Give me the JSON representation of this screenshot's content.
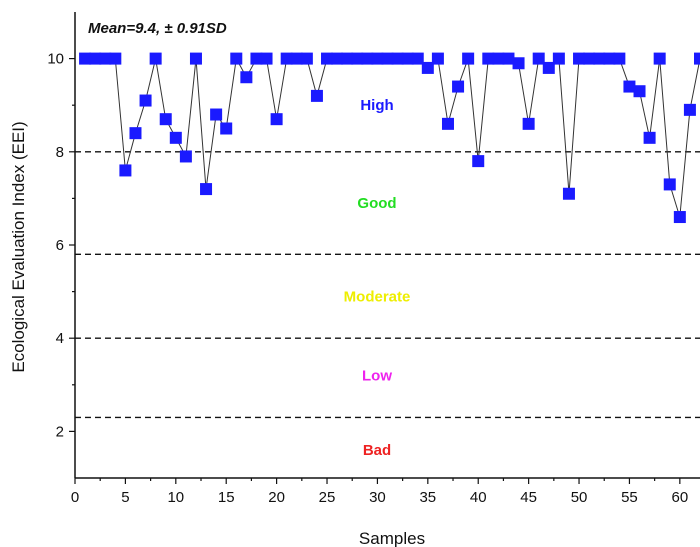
{
  "chart_data": {
    "type": "scatter",
    "annotation": "Mean=9.4, ± 0.91SD",
    "xlabel": "Samples",
    "ylabel": "Ecological Evaluation Index (EEI)",
    "xlim": [
      0,
      62
    ],
    "ylim": [
      1,
      11
    ],
    "x_ticks": [
      "0",
      "5",
      "10",
      "15",
      "20",
      "25",
      "30",
      "35",
      "40",
      "45",
      "50",
      "55",
      "60"
    ],
    "y_ticks": [
      "2",
      "4",
      "6",
      "8",
      "10"
    ],
    "marker_color": "#1a1aff",
    "zones": [
      {
        "name": "High",
        "color": "#1a1aff",
        "y": 9.0
      },
      {
        "name": "Good",
        "color": "#22dd22",
        "y": 6.9
      },
      {
        "name": "Moderate",
        "color": "#eeee00",
        "y": 4.9
      },
      {
        "name": "Low",
        "color": "#ee22ee",
        "y": 3.2
      },
      {
        "name": "Bad",
        "color": "#ee2222",
        "y": 1.6
      }
    ],
    "boundaries": [
      8.0,
      5.8,
      4.0,
      2.3
    ],
    "x": [
      1,
      2,
      3,
      4,
      5,
      6,
      7,
      8,
      9,
      10,
      11,
      12,
      13,
      14,
      15,
      16,
      17,
      18,
      19,
      20,
      21,
      22,
      23,
      24,
      25,
      26,
      27,
      28,
      29,
      30,
      31,
      32,
      33,
      34,
      35,
      36,
      37,
      38,
      39,
      40,
      41,
      42,
      43,
      44,
      45,
      46,
      47,
      48,
      49,
      50,
      51,
      52,
      53,
      54,
      55,
      56,
      57,
      58,
      59,
      60,
      61,
      62
    ],
    "values": [
      10,
      10,
      10,
      10,
      7.6,
      8.4,
      9.1,
      10,
      8.7,
      8.3,
      7.9,
      10,
      7.2,
      8.8,
      8.5,
      10,
      9.6,
      10,
      10,
      8.7,
      10,
      10,
      10,
      9.2,
      10,
      10,
      10,
      10,
      10,
      10,
      10,
      10,
      10,
      10,
      9.8,
      10,
      8.6,
      9.4,
      10,
      7.8,
      10,
      10,
      10,
      9.9,
      8.6,
      10,
      9.8,
      10,
      7.1,
      10,
      10,
      10,
      10,
      10,
      9.4,
      9.3,
      8.3,
      10,
      7.3,
      6.6,
      8.9,
      10
    ]
  }
}
